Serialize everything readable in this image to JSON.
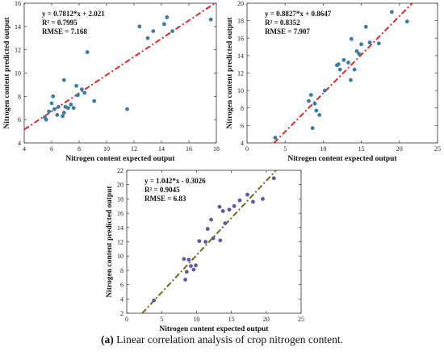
{
  "caption": {
    "label": "(a)",
    "text": " Linear correlation analysis of crop nitrogen content."
  },
  "chart_data": [
    {
      "type": "scatter",
      "xlabel": "Nitrogen content expected output",
      "ylabel": "Nitrogen content predicted output",
      "xlim": [
        4,
        18
      ],
      "ylim": [
        4,
        16
      ],
      "xticks": [
        4,
        6,
        8,
        10,
        12,
        14,
        16,
        18
      ],
      "yticks": [
        4,
        6,
        8,
        10,
        12,
        14,
        16
      ],
      "fit": {
        "slope": 0.7812,
        "intercept": 2.021,
        "color": "#e0282a"
      },
      "annotations": [
        "y = 0.7812*x + 2.021",
        "R² = 0.7995",
        "RMSE = 7.168"
      ],
      "point_color": "#3a7ca5",
      "x": [
        5.5,
        5.6,
        5.8,
        6.0,
        6.1,
        6.2,
        6.4,
        6.5,
        6.8,
        6.9,
        6.9,
        7.0,
        7.2,
        7.4,
        7.6,
        7.8,
        7.9,
        8.2,
        8.4,
        8.6,
        9.1,
        11.5,
        12.4,
        13.0,
        13.4,
        14.2,
        14.4,
        14.8,
        17.6
      ],
      "y": [
        6.2,
        6.0,
        6.7,
        7.4,
        8.0,
        6.9,
        6.4,
        7.1,
        6.3,
        6.6,
        9.4,
        7.1,
        7.0,
        7.3,
        7.0,
        8.9,
        8.1,
        8.6,
        8.3,
        11.8,
        7.6,
        6.9,
        14.0,
        13.0,
        13.6,
        14.2,
        14.8,
        13.6,
        14.6
      ]
    },
    {
      "type": "scatter",
      "xlabel": "Nitrogen content expected output",
      "ylabel": "Nitrogen content predicted output",
      "xlim": [
        0,
        25
      ],
      "ylim": [
        4,
        20
      ],
      "xticks": [
        0,
        5,
        10,
        15,
        20,
        25
      ],
      "yticks": [
        4,
        6,
        8,
        10,
        12,
        14,
        16,
        18,
        20
      ],
      "fit": {
        "slope": 0.8827,
        "intercept": 0.8647,
        "color": "#e0282a"
      },
      "annotations": [
        "y = 0.8827*x + 0.8647",
        "R² = 0.8352",
        "RMSE = 7.907"
      ],
      "point_color": "#3a7ca5",
      "x": [
        3.7,
        8.1,
        8.4,
        8.6,
        8.9,
        9.1,
        9.5,
        10.2,
        11.8,
        12.0,
        12.2,
        12.7,
        13.3,
        13.6,
        13.7,
        14.1,
        14.4,
        14.7,
        15.0,
        15.6,
        16.1,
        17.3,
        19.0,
        21.0
      ],
      "y": [
        4.6,
        8.8,
        9.5,
        5.7,
        8.5,
        7.7,
        7.2,
        10.0,
        12.9,
        13.0,
        12.4,
        13.5,
        13.2,
        11.2,
        15.9,
        12.4,
        14.5,
        14.2,
        15.3,
        17.3,
        15.5,
        15.4,
        19.0,
        17.9
      ]
    },
    {
      "type": "scatter",
      "xlabel": "Nitrogen content expected output",
      "ylabel": "Nitrogen content predicted output",
      "xlim": [
        0,
        25
      ],
      "ylim": [
        2,
        22
      ],
      "xticks": [
        0,
        5,
        10,
        15,
        20,
        25
      ],
      "yticks": [
        2,
        4,
        6,
        8,
        10,
        12,
        14,
        16,
        18,
        20,
        22
      ],
      "fit": {
        "slope": 1.042,
        "intercept": -0.3026,
        "color": "#6e6a1c"
      },
      "annotations": [
        "y = 1.042*x - 0.3026",
        "R² = 0.9045",
        "RMSE = 6.83"
      ],
      "point_color": "#5a5aa6",
      "x": [
        3.9,
        8.2,
        8.4,
        8.6,
        8.9,
        9.2,
        9.6,
        9.9,
        10.4,
        11.3,
        11.6,
        12.1,
        12.4,
        13.3,
        13.4,
        13.8,
        14.1,
        14.7,
        15.4,
        16.2,
        17.3,
        18.1,
        19.5,
        21.1
      ],
      "y": [
        3.8,
        9.6,
        6.7,
        7.8,
        9.5,
        8.6,
        8.1,
        8.7,
        12.1,
        12.0,
        13.8,
        15.1,
        12.5,
        16.9,
        12.2,
        16.3,
        14.6,
        16.5,
        17.0,
        17.8,
        18.6,
        17.6,
        18.0,
        20.9
      ]
    }
  ]
}
